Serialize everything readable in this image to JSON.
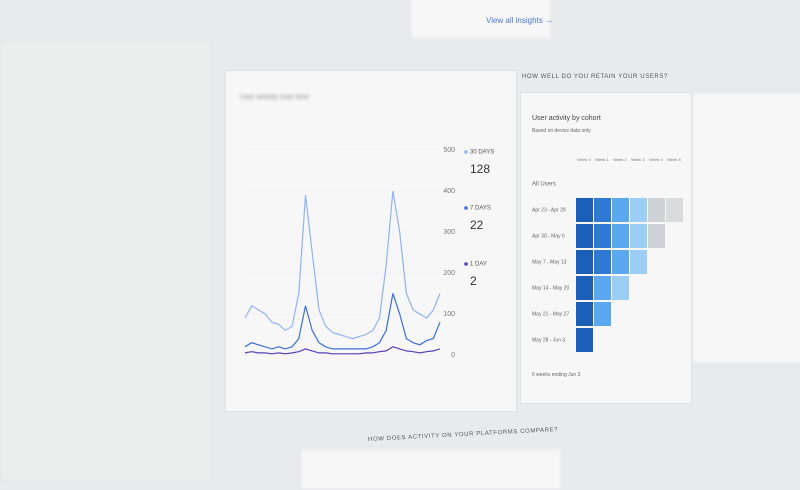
{
  "top_link": "View all insights →",
  "user_activity": {
    "title": "User activity over time",
    "chart": {
      "type": "line",
      "ylim": [
        0,
        500
      ],
      "yticks": [
        0,
        100,
        200,
        300,
        400,
        500
      ],
      "series": [
        {
          "name": "30 DAYS",
          "color": "#8fb4f0",
          "total": 128,
          "values": [
            90,
            120,
            110,
            100,
            80,
            75,
            60,
            70,
            150,
            390,
            250,
            110,
            70,
            55,
            50,
            45,
            40,
            45,
            50,
            60,
            90,
            220,
            400,
            300,
            150,
            110,
            100,
            90,
            110,
            150
          ]
        },
        {
          "name": "7 DAYS",
          "color": "#3b6fd8",
          "total": 22,
          "values": [
            20,
            30,
            25,
            20,
            15,
            20,
            15,
            20,
            40,
            120,
            60,
            30,
            20,
            15,
            15,
            15,
            15,
            15,
            15,
            20,
            30,
            60,
            150,
            100,
            40,
            30,
            25,
            35,
            40,
            80
          ]
        },
        {
          "name": "1 DAY",
          "color": "#5b3fb8",
          "total": 2,
          "values": [
            5,
            8,
            5,
            5,
            3,
            5,
            3,
            5,
            8,
            15,
            10,
            5,
            5,
            3,
            3,
            3,
            3,
            3,
            5,
            5,
            8,
            10,
            20,
            15,
            10,
            8,
            5,
            8,
            10,
            15
          ]
        }
      ]
    }
  },
  "retention": {
    "heading": "HOW WELL DO YOU RETAIN YOUR USERS?",
    "title": "User activity by cohort",
    "subtitle": "Based on device data only",
    "columns": [
      "Week 0",
      "Week 1",
      "Week 2",
      "Week 3",
      "Week 4",
      "Week 5"
    ],
    "all_users": "All Users",
    "rows": [
      "Apr 23 - Apr 29",
      "Apr 30 - May 6",
      "May 7 - May 13",
      "May 14 - May 20",
      "May 21 - May 27",
      "May 28 - Jun 3"
    ],
    "footer": "6 weeks ending Jun 3"
  },
  "platforms_heading": "HOW DOES ACTIVITY ON YOUR PLATFORMS COMPARE?"
}
